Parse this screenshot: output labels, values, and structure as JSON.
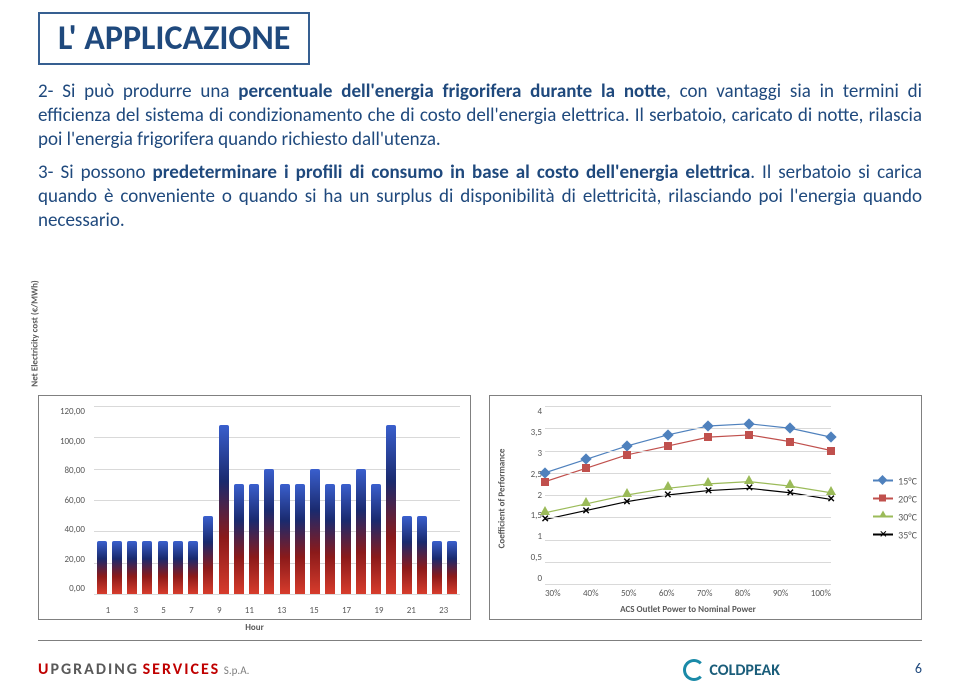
{
  "title": "L' APPLICAZIONE",
  "paragraphs": {
    "p2_lead": "2- Si può produrre una ",
    "p2_bold": "percentuale dell'energia frigorifera durante la notte",
    "p2_rest": ", con vantaggi sia in termini di efficienza del sistema di condizionamento che di costo dell'energia elettrica. Il serbatoio, caricato di notte, rilascia poi l'energia frigorifera quando richiesto dall'utenza.",
    "p3_lead": "3- Si possono ",
    "p3_bold": "predeterminare i profili di consumo in base al costo dell'energia elettrica",
    "p3_rest": ". Il serbatoio si carica quando è conveniente o quando si ha un surplus di disponibilità di elettricità, rilasciando poi l'energia quando necessario."
  },
  "bar_chart": {
    "type": "bar",
    "y_label": "Net Electricity cost (€/MWh)",
    "x_label": "Hour",
    "ylim": [
      0,
      120
    ],
    "ytick_step": 20,
    "yticks": [
      "120,00",
      "100,00",
      "80,00",
      "60,00",
      "40,00",
      "20,00",
      "0,00"
    ],
    "xticks": [
      "1",
      "3",
      "5",
      "7",
      "9",
      "11",
      "13",
      "15",
      "17",
      "19",
      "21",
      "23"
    ],
    "values": [
      34,
      34,
      34,
      34,
      34,
      34,
      34,
      50,
      108,
      70,
      70,
      80,
      70,
      70,
      80,
      70,
      70,
      80,
      70,
      108,
      50,
      50,
      34,
      34
    ],
    "bar_gradient": [
      "#3a5fcd",
      "#1a2a6e",
      "#8b1a1a",
      "#d73c2c"
    ],
    "background_color": "#ffffff",
    "grid_color": "#d9d9d9"
  },
  "line_chart": {
    "type": "line",
    "y_label": "Coefficient of Performance",
    "x_label": "ACS Outlet Power to Nominal Power",
    "ylim": [
      0,
      4
    ],
    "ytick_step": 0.5,
    "yticks": [
      "4",
      "3,5",
      "3",
      "2,5",
      "2",
      "1,5",
      "1",
      "0,5",
      "0"
    ],
    "xlim": [
      30,
      100
    ],
    "xticks": [
      "30%",
      "40%",
      "50%",
      "60%",
      "70%",
      "80%",
      "90%",
      "100%"
    ],
    "series": [
      {
        "name": "15°C",
        "color": "#4f81bd",
        "marker": "diamond",
        "values": [
          2.5,
          2.8,
          3.1,
          3.35,
          3.55,
          3.6,
          3.5,
          3.3
        ]
      },
      {
        "name": "20°C",
        "color": "#c0504d",
        "marker": "square",
        "values": [
          2.3,
          2.6,
          2.9,
          3.1,
          3.3,
          3.35,
          3.2,
          3.0
        ]
      },
      {
        "name": "30°C",
        "color": "#9bbb59",
        "marker": "triangle",
        "values": [
          1.6,
          1.8,
          2.0,
          2.15,
          2.25,
          2.3,
          2.2,
          2.05
        ]
      },
      {
        "name": "35°C",
        "color": "#000000",
        "marker": "x",
        "values": [
          1.45,
          1.65,
          1.85,
          2.0,
          2.1,
          2.15,
          2.05,
          1.9
        ]
      }
    ],
    "background_color": "#ffffff",
    "grid_color": "#d9d9d9",
    "line_width": 2,
    "marker_size": 6
  },
  "footer": {
    "left_part1": "UPGRADING",
    "left_part2": "SERVICES",
    "left_spa": "S.p.A.",
    "right": "COLDPEAK",
    "page": "6"
  }
}
